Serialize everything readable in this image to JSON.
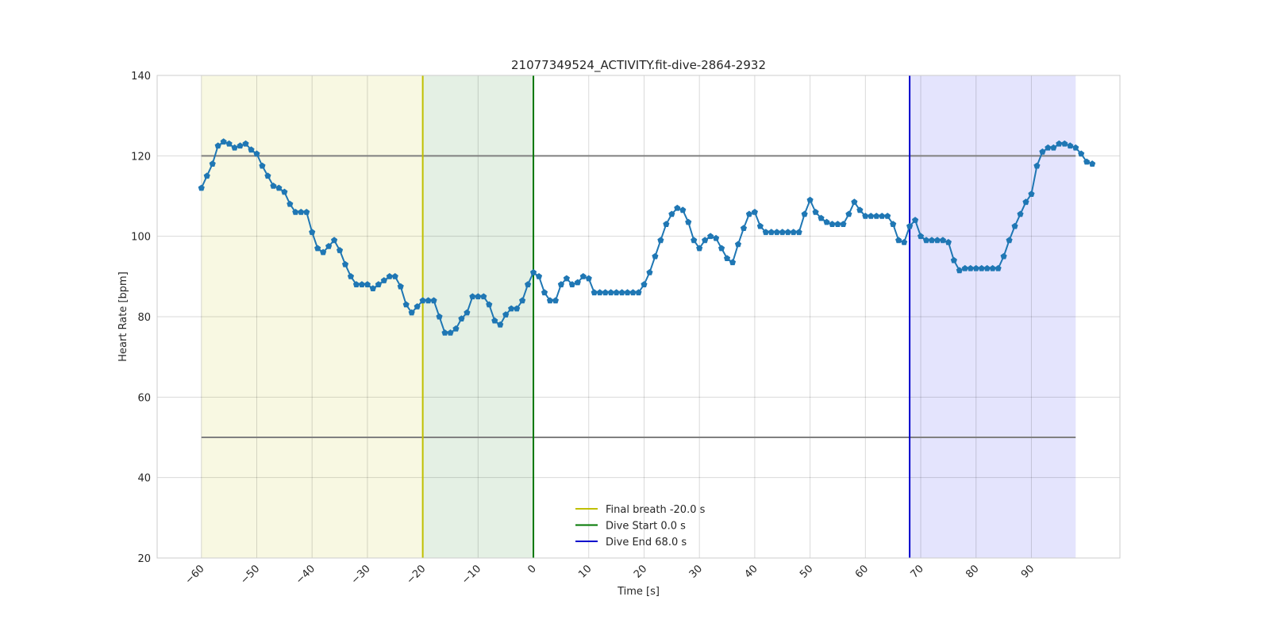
{
  "chart_data": {
    "type": "line",
    "title": "21077349524_ACTIVITY.fit-dive-2864-2932",
    "xlabel": "Time [s]",
    "ylabel": "Heart Rate [bpm]",
    "xlim": [
      -68,
      106
    ],
    "ylim": [
      20,
      140
    ],
    "xticks": [
      -60,
      -50,
      -40,
      -30,
      -20,
      -10,
      0,
      10,
      20,
      30,
      40,
      50,
      60,
      70,
      80,
      90
    ],
    "yticks": [
      20,
      40,
      60,
      80,
      100,
      120,
      140
    ],
    "grid": true,
    "legend_position": "bottom-center",
    "series": [
      {
        "color": "#1f77b4",
        "marker": "pentagon",
        "x_start": -60,
        "x_step": 1,
        "values": [
          112,
          115,
          118,
          122.5,
          123.5,
          123,
          122,
          122.5,
          123,
          121.5,
          120.5,
          117.5,
          115,
          112.5,
          112,
          111,
          108,
          106,
          106,
          106,
          101,
          97,
          96,
          97.5,
          99,
          96.5,
          93,
          90,
          88,
          88,
          88,
          87,
          88,
          89,
          90,
          90,
          87.5,
          83,
          81,
          82.5,
          84,
          84,
          84,
          80,
          76,
          76,
          77,
          79.5,
          81,
          85,
          85,
          85,
          83,
          79,
          78,
          80.5,
          82,
          82,
          84,
          88,
          91,
          90,
          86,
          84,
          84,
          88,
          89.5,
          88,
          88.5,
          90,
          89.5,
          86,
          86,
          86,
          86,
          86,
          86,
          86,
          86,
          86,
          88,
          91,
          95,
          99,
          103,
          105.5,
          107,
          106.5,
          103.5,
          99,
          97,
          99,
          100,
          99.5,
          97,
          94.5,
          93.5,
          98,
          102,
          105.5,
          106,
          102.5,
          101,
          101,
          101,
          101,
          101,
          101,
          101,
          105.5,
          109,
          106,
          104.5,
          103.5,
          103,
          103,
          103,
          105.5,
          108.5,
          106.5,
          105,
          105,
          105,
          105,
          105,
          103,
          99,
          98.5,
          102.5,
          104,
          100,
          99,
          99,
          99,
          99,
          98.5,
          94,
          91.5,
          92,
          92,
          92,
          92,
          92,
          92,
          92,
          95,
          99,
          102.5,
          105.5,
          108.5,
          110.5,
          117.5,
          121,
          122,
          122,
          123,
          123,
          122.5,
          122,
          120.5,
          118.5,
          118
        ]
      }
    ],
    "horizontal_lines": [
      {
        "y": 120,
        "x_from": -60,
        "x_to": 98,
        "color": "#808080"
      },
      {
        "y": 50,
        "x_from": -60,
        "x_to": 98,
        "color": "#808080"
      }
    ],
    "shaded_regions": [
      {
        "x_from": -60,
        "x_to": -20,
        "color": "#f8f8e2"
      },
      {
        "x_from": -20,
        "x_to": 0,
        "color": "#e4f0e4"
      },
      {
        "x_from": 68,
        "x_to": 98,
        "color": "#e4e4fd"
      }
    ],
    "vertical_lines": [
      {
        "x": -20,
        "color": "#bfbf00",
        "label": "Final breath -20.0 s"
      },
      {
        "x": 0,
        "color": "#007700",
        "label": "Dive Start 0.0 s"
      },
      {
        "x": 68,
        "color": "#0000cc",
        "label": "Dive End 68.0 s"
      }
    ]
  }
}
